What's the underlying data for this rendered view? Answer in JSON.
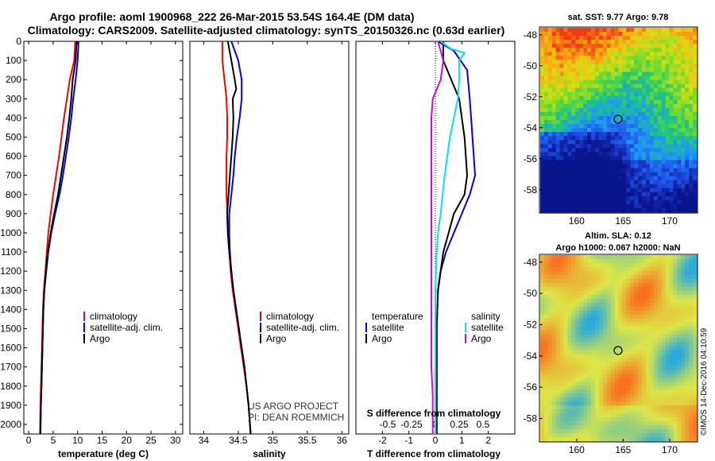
{
  "title_line1": "Argo profile: aoml 1900968_222 26-Mar-2015 53.54S 164.4E (DM data)",
  "title_line2": "Climatology: CARS2009. Satellite-adjusted climatology: synTS_20150326.nc (0.63d earlier)",
  "panel1": {
    "xlabel": "temperature (deg C)",
    "legend": [
      "climatology",
      "satellite-adj. clim.",
      "Argo"
    ]
  },
  "panel2": {
    "xlabel": "salinity",
    "legend": [
      "climatology",
      "satellite-adj. clim.",
      "Argo"
    ],
    "credit1": "US ARGO PROJECT",
    "credit2": "PI: DEAN ROEMMICH"
  },
  "panel3": {
    "xlabel": "T difference from climatology",
    "top_label": "S difference from climatology",
    "legend_left_title": "temperature",
    "legend_left": [
      "satellite",
      "Argo"
    ],
    "legend_right_title": "salinity",
    "legend_right": [
      "satellite",
      "Argo"
    ]
  },
  "map1": {
    "title": "sat. SST: 9.77 Argo: 9.78"
  },
  "map2": {
    "title1": "Altim. SLA: 0.12",
    "title2": "Argo h1000: 0.067 h2000: NaN"
  },
  "stamp": "©IMOS 14-Dec-2016 04:10:59",
  "colors": {
    "climatology": "#ff0000",
    "satellite": "#0000ff",
    "argo": "#000000",
    "sat_salinity": "#00e5ee",
    "argo_salinity": "#e000e0"
  },
  "chart_data": [
    {
      "type": "line",
      "xlabel": "temperature (deg C)",
      "ylabel": "",
      "xlim": [
        -1,
        31.5
      ],
      "ylim": [
        2050,
        0
      ],
      "xticks": [
        0,
        5,
        10,
        15,
        20,
        25,
        30
      ],
      "yticks": [
        0,
        100,
        200,
        300,
        400,
        500,
        600,
        700,
        800,
        900,
        1000,
        1100,
        1200,
        1300,
        1400,
        1500,
        1600,
        1700,
        1800,
        1900,
        2000
      ],
      "series": [
        {
          "name": "climatology",
          "color": "#ff0000",
          "points": [
            [
              9.5,
              0
            ],
            [
              9.3,
              100
            ],
            [
              8.4,
              200
            ],
            [
              7.8,
              300
            ],
            [
              7.2,
              400
            ],
            [
              6.7,
              500
            ],
            [
              6.2,
              600
            ],
            [
              5.6,
              700
            ],
            [
              5.0,
              800
            ],
            [
              4.5,
              900
            ],
            [
              4.0,
              1000
            ],
            [
              3.7,
              1100
            ],
            [
              3.4,
              1200
            ],
            [
              3.1,
              1300
            ],
            [
              2.9,
              1400
            ],
            [
              2.8,
              1500
            ],
            [
              2.7,
              1600
            ],
            [
              2.6,
              1700
            ],
            [
              2.5,
              1800
            ],
            [
              2.4,
              1900
            ],
            [
              2.3,
              2050
            ]
          ]
        },
        {
          "name": "satellite-adj. clim.",
          "color": "#0000ff",
          "points": [
            [
              10.2,
              0
            ],
            [
              10.0,
              100
            ],
            [
              9.6,
              200
            ],
            [
              9.1,
              300
            ],
            [
              8.7,
              400
            ],
            [
              8.2,
              500
            ],
            [
              7.6,
              600
            ],
            [
              7.0,
              700
            ],
            [
              6.3,
              800
            ],
            [
              5.4,
              900
            ],
            [
              4.6,
              1000
            ],
            [
              4.0,
              1100
            ],
            [
              3.6,
              1200
            ],
            [
              3.2,
              1300
            ],
            [
              3.0,
              1400
            ],
            [
              2.9,
              1500
            ],
            [
              2.8,
              1600
            ],
            [
              2.7,
              1700
            ],
            [
              2.6,
              1800
            ],
            [
              2.5,
              1900
            ],
            [
              2.4,
              2050
            ]
          ]
        },
        {
          "name": "Argo",
          "color": "#000000",
          "points": [
            [
              9.8,
              0
            ],
            [
              9.6,
              100
            ],
            [
              9.0,
              200
            ],
            [
              8.7,
              300
            ],
            [
              8.3,
              400
            ],
            [
              7.8,
              500
            ],
            [
              7.2,
              600
            ],
            [
              6.6,
              700
            ],
            [
              6.0,
              800
            ],
            [
              5.2,
              900
            ],
            [
              4.5,
              1000
            ],
            [
              3.9,
              1100
            ],
            [
              3.5,
              1200
            ],
            [
              3.2,
              1300
            ],
            [
              3.0,
              1400
            ],
            [
              2.9,
              1500
            ],
            [
              2.8,
              1600
            ],
            [
              2.7,
              1700
            ],
            [
              2.6,
              1800
            ],
            [
              2.5,
              1900
            ],
            [
              2.4,
              2050
            ]
          ]
        }
      ]
    },
    {
      "type": "line",
      "xlabel": "salinity",
      "ylabel": "",
      "xlim": [
        33.8,
        36.1
      ],
      "ylim": [
        2050,
        0
      ],
      "xticks": [
        34,
        34.5,
        35,
        35.5,
        36
      ],
      "xticklabels": [
        "34",
        "34.5",
        "35",
        "35.5",
        "36"
      ],
      "series": [
        {
          "name": "climatology",
          "color": "#ff0000",
          "points": [
            [
              34.27,
              0
            ],
            [
              34.27,
              100
            ],
            [
              34.3,
              200
            ],
            [
              34.33,
              300
            ],
            [
              34.34,
              400
            ],
            [
              34.34,
              500
            ],
            [
              34.33,
              600
            ],
            [
              34.33,
              700
            ],
            [
              34.33,
              800
            ],
            [
              34.34,
              900
            ],
            [
              34.35,
              1000
            ],
            [
              34.37,
              1100
            ],
            [
              34.39,
              1200
            ],
            [
              34.42,
              1300
            ],
            [
              34.46,
              1400
            ],
            [
              34.5,
              1500
            ],
            [
              34.54,
              1600
            ],
            [
              34.58,
              1700
            ],
            [
              34.62,
              1800
            ],
            [
              34.65,
              1900
            ],
            [
              34.68,
              2050
            ]
          ]
        },
        {
          "name": "satellite-adj. clim.",
          "color": "#0000ff",
          "points": [
            [
              34.4,
              0
            ],
            [
              34.5,
              100
            ],
            [
              34.55,
              200
            ],
            [
              34.55,
              300
            ],
            [
              34.52,
              400
            ],
            [
              34.48,
              500
            ],
            [
              34.45,
              600
            ],
            [
              34.43,
              700
            ],
            [
              34.4,
              800
            ],
            [
              34.37,
              900
            ],
            [
              34.37,
              1000
            ],
            [
              34.38,
              1100
            ],
            [
              34.4,
              1200
            ],
            [
              34.43,
              1300
            ],
            [
              34.47,
              1400
            ],
            [
              34.51,
              1500
            ],
            [
              34.55,
              1600
            ],
            [
              34.59,
              1700
            ],
            [
              34.62,
              1800
            ],
            [
              34.65,
              1900
            ],
            [
              34.68,
              2050
            ]
          ]
        },
        {
          "name": "Argo",
          "color": "#000000",
          "points": [
            [
              34.35,
              0
            ],
            [
              34.4,
              100
            ],
            [
              34.45,
              200
            ],
            [
              34.47,
              250
            ],
            [
              34.42,
              300
            ],
            [
              34.43,
              400
            ],
            [
              34.42,
              500
            ],
            [
              34.4,
              600
            ],
            [
              34.38,
              700
            ],
            [
              34.36,
              800
            ],
            [
              34.34,
              900
            ],
            [
              34.35,
              1000
            ],
            [
              34.37,
              1100
            ],
            [
              34.4,
              1200
            ],
            [
              34.43,
              1300
            ],
            [
              34.47,
              1400
            ],
            [
              34.51,
              1500
            ],
            [
              34.55,
              1600
            ],
            [
              34.59,
              1700
            ],
            [
              34.62,
              1800
            ],
            [
              34.65,
              1900
            ],
            [
              34.68,
              2050
            ]
          ]
        }
      ]
    },
    {
      "type": "line",
      "xlabel": "T difference from climatology",
      "top_label": "S difference from climatology",
      "ylim": [
        2050,
        0
      ],
      "xlim": [
        -3,
        3
      ],
      "xticks": [
        -2,
        -1,
        0,
        1,
        2
      ],
      "top_xticks": [
        -0.5,
        -0.25,
        0,
        0.25,
        0.5
      ],
      "top_xticklabels": [
        "-0.5",
        "-0.25",
        "0",
        "0.25",
        "0.5"
      ],
      "series": [
        {
          "name": "temperature satellite",
          "color": "#0000ff",
          "points": [
            [
              0.1,
              0
            ],
            [
              0.7,
              50
            ],
            [
              1.2,
              150
            ],
            [
              1.3,
              300
            ],
            [
              1.4,
              500
            ],
            [
              1.5,
              700
            ],
            [
              1.3,
              800
            ],
            [
              1.0,
              900
            ],
            [
              0.7,
              1000
            ],
            [
              0.4,
              1100
            ],
            [
              0.2,
              1200
            ],
            [
              0.1,
              1300
            ],
            [
              0.05,
              1500
            ],
            [
              0.05,
              2050
            ]
          ]
        },
        {
          "name": "temperature Argo",
          "color": "#000000",
          "points": [
            [
              0.3,
              0
            ],
            [
              0.3,
              100
            ],
            [
              0.6,
              200
            ],
            [
              0.9,
              300
            ],
            [
              1.0,
              400
            ],
            [
              1.1,
              500
            ],
            [
              1.2,
              700
            ],
            [
              1.1,
              800
            ],
            [
              0.7,
              900
            ],
            [
              0.5,
              1000
            ],
            [
              0.3,
              1100
            ],
            [
              0.1,
              1300
            ],
            [
              0.05,
              1500
            ],
            [
              0.05,
              2050
            ]
          ]
        },
        {
          "name": "salinity satellite",
          "color": "#00e5ee",
          "points": [
            [
              0.2,
              0
            ],
            [
              0.6,
              40
            ],
            [
              1.1,
              60
            ],
            [
              0.9,
              100
            ],
            [
              0.9,
              200
            ],
            [
              0.85,
              300
            ],
            [
              0.7,
              400
            ],
            [
              0.55,
              500
            ],
            [
              0.35,
              700
            ],
            [
              0.2,
              900
            ],
            [
              0.1,
              1000
            ],
            [
              0.05,
              1100
            ],
            [
              0.0,
              1300
            ],
            [
              0.0,
              1500
            ],
            [
              0.0,
              2050
            ]
          ]
        },
        {
          "name": "salinity Argo",
          "color": "#e000e0",
          "points": [
            [
              0.1,
              0
            ],
            [
              0.3,
              100
            ],
            [
              0.2,
              200
            ],
            [
              -0.1,
              300
            ],
            [
              -0.15,
              400
            ],
            [
              -0.15,
              500
            ],
            [
              -0.15,
              700
            ],
            [
              -0.15,
              900
            ],
            [
              -0.15,
              1100
            ],
            [
              -0.15,
              1300
            ],
            [
              -0.15,
              1500
            ],
            [
              -0.15,
              1700
            ],
            [
              -0.1,
              1850
            ],
            [
              -0.1,
              2050
            ]
          ]
        }
      ]
    },
    {
      "type": "heatmap",
      "title": "sat. SST: 9.77 Argo: 9.78",
      "xlim": [
        156,
        173
      ],
      "ylim": [
        -59.5,
        -47.5
      ],
      "xticks": [
        160,
        165,
        170
      ],
      "yticks": [
        -48,
        -50,
        -52,
        -54,
        -56,
        -58
      ],
      "float_marker": [
        164.4,
        -53.54
      ]
    },
    {
      "type": "heatmap",
      "title": "Altim. SLA: 0.12",
      "subtitle": "Argo h1000: 0.067 h2000: NaN",
      "xlim": [
        156,
        173
      ],
      "ylim": [
        -59.5,
        -47.5
      ],
      "xticks": [
        160,
        165,
        170
      ],
      "yticks": [
        -48,
        -50,
        -52,
        -54,
        -56,
        -58
      ],
      "float_marker": [
        164.4,
        -53.54
      ]
    }
  ]
}
